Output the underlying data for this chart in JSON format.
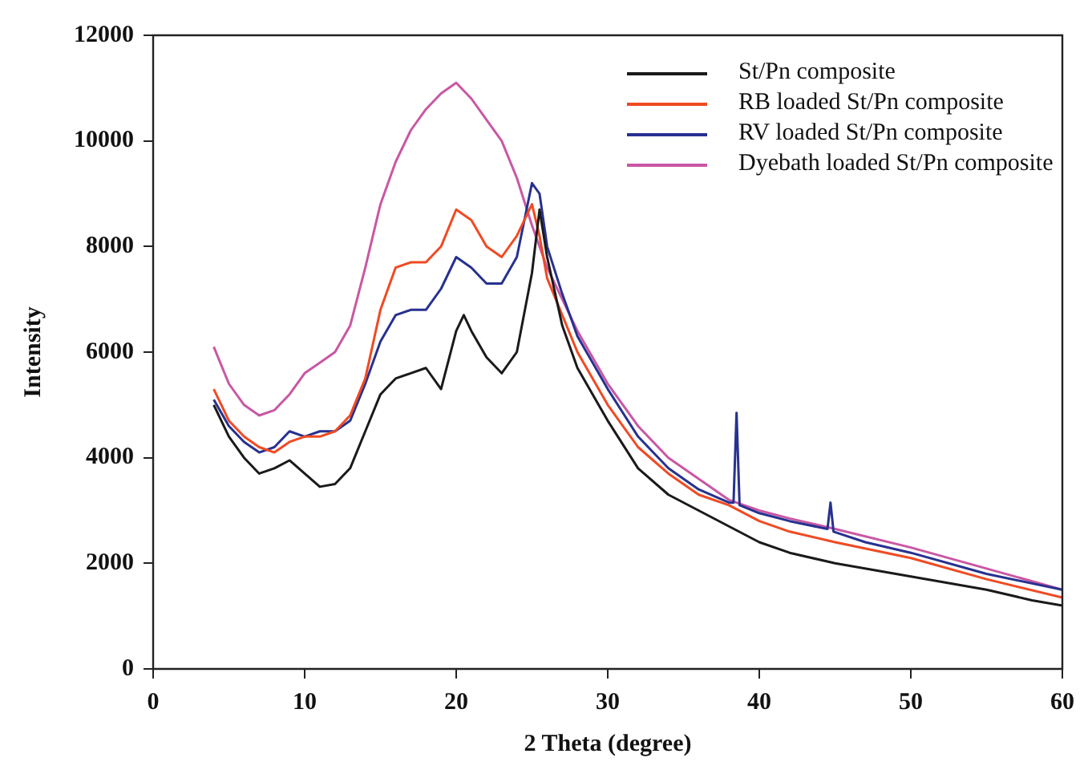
{
  "chart_data": {
    "type": "line",
    "xlabel": "2 Theta (degree)",
    "ylabel": "Intensity",
    "xlim": [
      0,
      60
    ],
    "xticks": [
      0,
      10,
      20,
      30,
      40,
      50,
      60
    ],
    "ylim": [
      0,
      12000
    ],
    "yticks": [
      0,
      2000,
      4000,
      6000,
      8000,
      10000,
      12000
    ],
    "grid": false,
    "legend": "top right",
    "marker": "none",
    "line_style": "solid",
    "series": [
      {
        "name": "St/Pn composite",
        "color": "#1a1a1a",
        "x": [
          4,
          5,
          6,
          7,
          8,
          9,
          10,
          11,
          12,
          13,
          14,
          15,
          16,
          17,
          18,
          19,
          20,
          20.5,
          21,
          22,
          23,
          24,
          25,
          25.5,
          26,
          27,
          28,
          30,
          32,
          34,
          36,
          38,
          40,
          42,
          45,
          50,
          55,
          58,
          60
        ],
        "values": [
          5000,
          4400,
          4000,
          3700,
          3800,
          3950,
          3700,
          3450,
          3500,
          3800,
          4500,
          5200,
          5500,
          5600,
          5700,
          5300,
          6400,
          6700,
          6400,
          5900,
          5600,
          6000,
          7500,
          8700,
          7800,
          6500,
          5700,
          4700,
          3800,
          3300,
          3000,
          2700,
          2400,
          2200,
          2000,
          1750,
          1500,
          1300,
          1200
        ]
      },
      {
        "name": "RB loaded St/Pn composite",
        "color": "#f04a23",
        "x": [
          4,
          5,
          6,
          7,
          8,
          9,
          10,
          11,
          12,
          13,
          14,
          15,
          16,
          17,
          18,
          19,
          20,
          21,
          22,
          23,
          24,
          25,
          25.5,
          26,
          28,
          30,
          32,
          34,
          36,
          38,
          40,
          42,
          45,
          50,
          55,
          60
        ],
        "values": [
          5300,
          4700,
          4400,
          4200,
          4100,
          4300,
          4400,
          4400,
          4500,
          4800,
          5500,
          6800,
          7600,
          7700,
          7700,
          8000,
          8700,
          8500,
          8000,
          7800,
          8200,
          8800,
          8200,
          7400,
          6000,
          5000,
          4200,
          3700,
          3300,
          3100,
          2800,
          2600,
          2400,
          2100,
          1700,
          1350
        ]
      },
      {
        "name": "RV loaded St/Pn composite",
        "color": "#27318f",
        "x": [
          4,
          5,
          6,
          7,
          8,
          9,
          10,
          11,
          12,
          13,
          14,
          15,
          16,
          17,
          18,
          19,
          20,
          21,
          22,
          23,
          24,
          25,
          25.5,
          26,
          27,
          28,
          30,
          32,
          34,
          36,
          38,
          38.3,
          38.5,
          38.7,
          40,
          42,
          44.5,
          44.7,
          44.9,
          47,
          50,
          55,
          60
        ],
        "values": [
          5100,
          4600,
          4300,
          4100,
          4200,
          4500,
          4400,
          4500,
          4500,
          4700,
          5400,
          6200,
          6700,
          6800,
          6800,
          7200,
          7800,
          7600,
          7300,
          7300,
          7800,
          9200,
          9000,
          8000,
          7100,
          6300,
          5300,
          4400,
          3800,
          3400,
          3150,
          3150,
          4850,
          3100,
          2950,
          2800,
          2650,
          3150,
          2600,
          2400,
          2200,
          1800,
          1500
        ]
      },
      {
        "name": "Dyebath loaded St/Pn composite",
        "color": "#c957a4",
        "x": [
          4,
          5,
          6,
          7,
          8,
          9,
          10,
          11,
          12,
          13,
          14,
          15,
          16,
          17,
          18,
          19,
          20,
          21,
          22,
          23,
          24,
          25,
          26,
          27,
          28,
          30,
          32,
          34,
          36,
          38,
          40,
          42,
          45,
          50,
          55,
          60
        ],
        "values": [
          6100,
          5400,
          5000,
          4800,
          4900,
          5200,
          5600,
          5800,
          6000,
          6500,
          7600,
          8800,
          9600,
          10200,
          10600,
          10900,
          11100,
          10800,
          10400,
          10000,
          9300,
          8400,
          7600,
          7000,
          6400,
          5400,
          4600,
          4000,
          3600,
          3200,
          3000,
          2850,
          2650,
          2300,
          1900,
          1500
        ]
      }
    ]
  }
}
